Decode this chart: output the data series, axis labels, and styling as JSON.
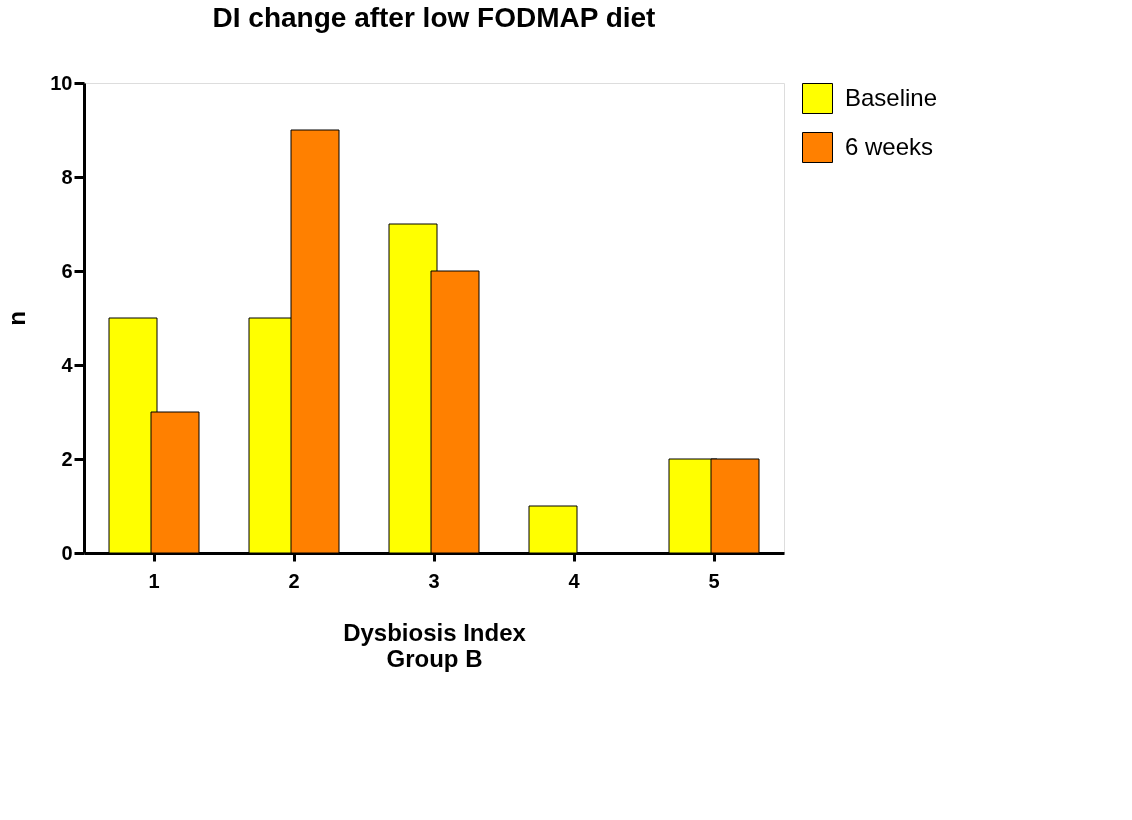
{
  "chart_data": {
    "type": "bar",
    "title": "DI change after low FODMAP diet",
    "xlabel": "Dysbiosis Index",
    "ylabel": "n",
    "annotations": [
      "Group B"
    ],
    "categories": [
      "1",
      "2",
      "3",
      "4",
      "5"
    ],
    "series": [
      {
        "name": "Baseline",
        "color": "#ffff00",
        "values": [
          5,
          5,
          7,
          1,
          2
        ]
      },
      {
        "name": "6 weeks",
        "color": "#ff8000",
        "values": [
          3,
          9,
          6,
          0,
          2
        ]
      }
    ],
    "ylim": [
      0,
      10
    ],
    "yticks": [
      0,
      2,
      4,
      6,
      8,
      10
    ],
    "grid": false,
    "legend": "top right"
  }
}
